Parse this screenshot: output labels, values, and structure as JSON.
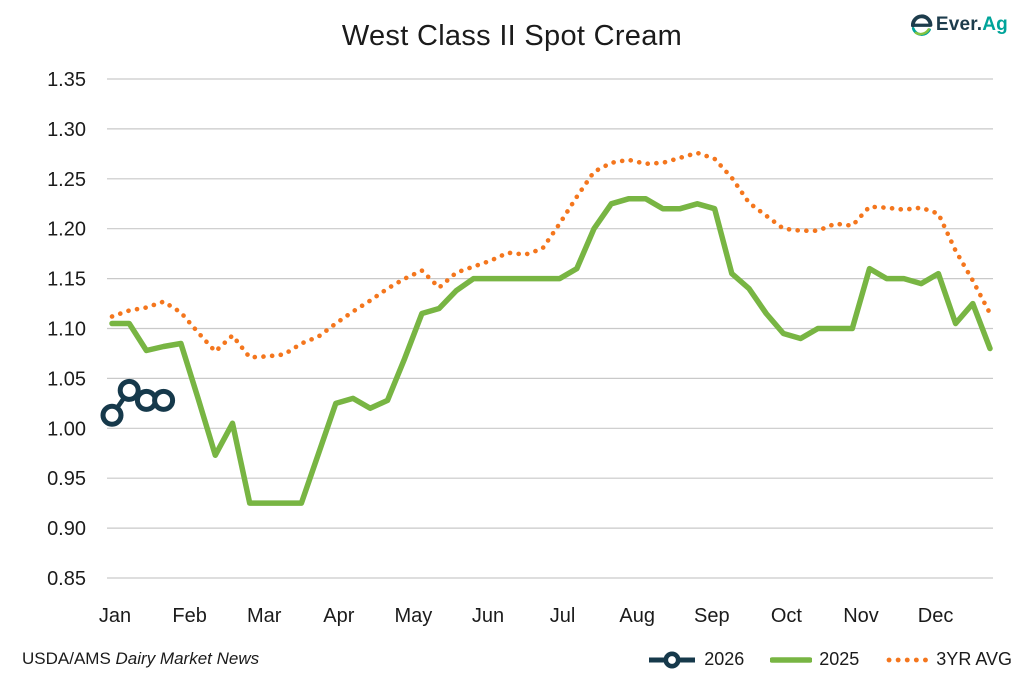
{
  "header": {
    "title": "West Class II Spot Cream",
    "logo": {
      "text_primary": "Ever.",
      "text_secondary": "Ag",
      "icon": "everag-e-icon"
    }
  },
  "footer": {
    "source_prefix": "USDA/AMS",
    "source_name": "Dairy Market News"
  },
  "legend": {
    "position": "bottom-right",
    "items": [
      {
        "label": "2026",
        "swatch": "navy-line-open-circle-marker"
      },
      {
        "label": "2025",
        "swatch": "green-solid-line"
      },
      {
        "label": "3YR AVG",
        "swatch": "orange-dotted-line"
      }
    ]
  },
  "colors": {
    "series_2026": "#16394b",
    "series_2025": "#78b543",
    "series_3yr_avg": "#f4761d",
    "grid": "#c9c9c9",
    "text": "#1b1b1b",
    "logo_navy": "#1d3c4c",
    "logo_teal": "#00a49a",
    "logo_green": "#84c341",
    "background": "#ffffff"
  },
  "chart_data": {
    "type": "line",
    "title": "West Class II Spot Cream",
    "x_axis": {
      "tick_labels": [
        "Jan",
        "Feb",
        "Mar",
        "Apr",
        "May",
        "Jun",
        "Jul",
        "Aug",
        "Sep",
        "Oct",
        "Nov",
        "Dec"
      ],
      "frequency": "weekly",
      "weeks_per_month": [
        4,
        4,
        5,
        4,
        4,
        5,
        4,
        4,
        5,
        4,
        4,
        5
      ]
    },
    "y_axis": {
      "min": 0.85,
      "max": 1.35,
      "step": 0.05,
      "tick_labels": [
        "0.85",
        "0.90",
        "0.95",
        "1.00",
        "1.05",
        "1.10",
        "1.15",
        "1.20",
        "1.25",
        "1.30",
        "1.35"
      ]
    },
    "grid": "horizontal",
    "legend_position": "bottom-right",
    "series": [
      {
        "name": "2026",
        "style": "solid-line-open-circle-markers",
        "color": "#16394b",
        "values": [
          1.013,
          1.038,
          1.028,
          1.028
        ]
      },
      {
        "name": "2025",
        "style": "solid-line",
        "color": "#78b543",
        "values": [
          1.105,
          1.105,
          1.078,
          1.082,
          1.085,
          1.03,
          0.973,
          1.005,
          0.925,
          0.925,
          0.925,
          0.925,
          0.975,
          1.025,
          1.03,
          1.02,
          1.028,
          1.07,
          1.115,
          1.12,
          1.138,
          1.15,
          1.15,
          1.15,
          1.15,
          1.15,
          1.15,
          1.16,
          1.2,
          1.225,
          1.23,
          1.23,
          1.22,
          1.22,
          1.225,
          1.22,
          1.155,
          1.14,
          1.115,
          1.095,
          1.09,
          1.1,
          1.1,
          1.1,
          1.16,
          1.15,
          1.15,
          1.145,
          1.155,
          1.105,
          1.125,
          1.08
        ]
      },
      {
        "name": "3YR AVG",
        "style": "dotted-line",
        "color": "#f4761d",
        "values": [
          1.112,
          1.118,
          1.121,
          1.127,
          1.116,
          1.096,
          1.077,
          1.093,
          1.071,
          1.072,
          1.074,
          1.085,
          1.092,
          1.105,
          1.117,
          1.128,
          1.14,
          1.15,
          1.158,
          1.141,
          1.156,
          1.162,
          1.168,
          1.176,
          1.174,
          1.18,
          1.205,
          1.232,
          1.257,
          1.266,
          1.269,
          1.265,
          1.266,
          1.271,
          1.276,
          1.27,
          1.251,
          1.226,
          1.213,
          1.2,
          1.198,
          1.198,
          1.205,
          1.203,
          1.222,
          1.221,
          1.219,
          1.221,
          1.215,
          1.178,
          1.148,
          1.115
        ]
      }
    ]
  }
}
